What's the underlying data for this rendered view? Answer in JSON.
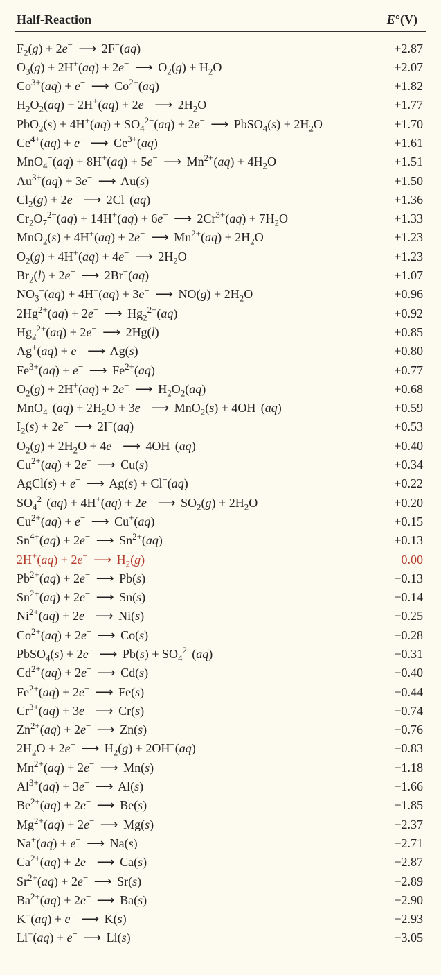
{
  "header": {
    "left": "Half-Reaction",
    "right_html": "<i>E</i>°(V)"
  },
  "rows": [
    {
      "rxn": "F<sub>2</sub>(<i>g</i>) + 2<i>e</i><sup>−</sup> <span class='arrow'>⟶</span> 2F<sup>−</sup>(<i>aq</i>)",
      "e": "+2.87"
    },
    {
      "rxn": "O<sub>3</sub>(<i>g</i>) + 2H<sup>+</sup>(<i>aq</i>) + 2<i>e</i><sup>−</sup> <span class='arrow'>⟶</span> O<sub>2</sub>(<i>g</i>) + H<sub>2</sub>O",
      "e": "+2.07"
    },
    {
      "rxn": "Co<sup>3+</sup>(<i>aq</i>) + <i>e</i><sup>−</sup> <span class='arrow'>⟶</span> Co<sup>2+</sup>(<i>aq</i>)",
      "e": "+1.82"
    },
    {
      "rxn": "H<sub>2</sub>O<sub>2</sub>(<i>aq</i>) + 2H<sup>+</sup>(<i>aq</i>) + 2<i>e</i><sup>−</sup> <span class='arrow'>⟶</span> 2H<sub>2</sub>O",
      "e": "+1.77"
    },
    {
      "rxn": "PbO<sub>2</sub>(<i>s</i>) + 4H<sup>+</sup>(<i>aq</i>) + SO<sub>4</sub><sup>2−</sup>(<i>aq</i>) + 2<i>e</i><sup>−</sup> <span class='arrow'>⟶</span> PbSO<sub>4</sub>(<i>s</i>) + 2H<sub>2</sub>O",
      "e": "+1.70"
    },
    {
      "rxn": "Ce<sup>4+</sup>(<i>aq</i>) + <i>e</i><sup>−</sup> <span class='arrow'>⟶</span> Ce<sup>3+</sup>(<i>aq</i>)",
      "e": "+1.61"
    },
    {
      "rxn": "MnO<sub>4</sub><sup>−</sup>(<i>aq</i>) + 8H<sup>+</sup>(<i>aq</i>) + 5<i>e</i><sup>−</sup> <span class='arrow'>⟶</span> Mn<sup>2+</sup>(<i>aq</i>) + 4H<sub>2</sub>O",
      "e": "+1.51"
    },
    {
      "rxn": "Au<sup>3+</sup>(<i>aq</i>) + 3<i>e</i><sup>−</sup> <span class='arrow'>⟶</span> Au(<i>s</i>)",
      "e": "+1.50"
    },
    {
      "rxn": "Cl<sub>2</sub>(<i>g</i>) + 2<i>e</i><sup>−</sup> <span class='arrow'>⟶</span> 2Cl<sup>−</sup>(<i>aq</i>)",
      "e": "+1.36"
    },
    {
      "rxn": "Cr<sub>2</sub>O<sub>7</sub><sup>2−</sup>(<i>aq</i>) + 14H<sup>+</sup>(<i>aq</i>) + 6<i>e</i><sup>−</sup> <span class='arrow'>⟶</span> 2Cr<sup>3+</sup>(<i>aq</i>) + 7H<sub>2</sub>O",
      "e": "+1.33"
    },
    {
      "rxn": "MnO<sub>2</sub>(<i>s</i>) + 4H<sup>+</sup>(<i>aq</i>) + 2<i>e</i><sup>−</sup> <span class='arrow'>⟶</span> Mn<sup>2+</sup>(<i>aq</i>) + 2H<sub>2</sub>O",
      "e": "+1.23"
    },
    {
      "rxn": "O<sub>2</sub>(<i>g</i>) + 4H<sup>+</sup>(<i>aq</i>) + 4<i>e</i><sup>−</sup> <span class='arrow'>⟶</span> 2H<sub>2</sub>O",
      "e": "+1.23"
    },
    {
      "rxn": "Br<sub>2</sub>(<i>l</i>) + 2<i>e</i><sup>−</sup> <span class='arrow'>⟶</span> 2Br<sup>−</sup>(<i>aq</i>)",
      "e": "+1.07"
    },
    {
      "rxn": "NO<sub>3</sub><sup>−</sup>(<i>aq</i>) + 4H<sup>+</sup>(<i>aq</i>) + 3<i>e</i><sup>−</sup> <span class='arrow'>⟶</span> NO(<i>g</i>) + 2H<sub>2</sub>O",
      "e": "+0.96"
    },
    {
      "rxn": "2Hg<sup>2+</sup>(<i>aq</i>) + 2<i>e</i><sup>−</sup> <span class='arrow'>⟶</span> Hg<sub>2</sub><sup>2+</sup>(<i>aq</i>)",
      "e": "+0.92"
    },
    {
      "rxn": "Hg<sub>2</sub><sup>2+</sup>(<i>aq</i>) + 2<i>e</i><sup>−</sup> <span class='arrow'>⟶</span> 2Hg(<i>l</i>)",
      "e": "+0.85"
    },
    {
      "rxn": "Ag<sup>+</sup>(<i>aq</i>) + <i>e</i><sup>−</sup> <span class='arrow'>⟶</span> Ag(<i>s</i>)",
      "e": "+0.80"
    },
    {
      "rxn": "Fe<sup>3+</sup>(<i>aq</i>) + <i>e</i><sup>−</sup> <span class='arrow'>⟶</span> Fe<sup>2+</sup>(<i>aq</i>)",
      "e": "+0.77"
    },
    {
      "rxn": "O<sub>2</sub>(<i>g</i>) + 2H<sup>+</sup>(<i>aq</i>) + 2<i>e</i><sup>−</sup> <span class='arrow'>⟶</span> H<sub>2</sub>O<sub>2</sub>(<i>aq</i>)",
      "e": "+0.68"
    },
    {
      "rxn": "MnO<sub>4</sub><sup>−</sup>(<i>aq</i>) + 2H<sub>2</sub>O + 3<i>e</i><sup>−</sup> <span class='arrow'>⟶</span> MnO<sub>2</sub>(<i>s</i>) + 4OH<sup>−</sup>(<i>aq</i>)",
      "e": "+0.59"
    },
    {
      "rxn": "I<sub>2</sub>(<i>s</i>) + 2<i>e</i><sup>−</sup> <span class='arrow'>⟶</span> 2I<sup>−</sup>(<i>aq</i>)",
      "e": "+0.53"
    },
    {
      "rxn": "O<sub>2</sub>(<i>g</i>) + 2H<sub>2</sub>O + 4<i>e</i><sup>−</sup> <span class='arrow'>⟶</span> 4OH<sup>−</sup>(<i>aq</i>)",
      "e": "+0.40"
    },
    {
      "rxn": "Cu<sup>2+</sup>(<i>aq</i>) + 2<i>e</i><sup>−</sup> <span class='arrow'>⟶</span> Cu(<i>s</i>)",
      "e": "+0.34"
    },
    {
      "rxn": "AgCl(<i>s</i>) + <i>e</i><sup>−</sup> <span class='arrow'>⟶</span> Ag(<i>s</i>) + Cl<sup>−</sup>(<i>aq</i>)",
      "e": "+0.22"
    },
    {
      "rxn": "SO<sub>4</sub><sup>2−</sup>(<i>aq</i>) + 4H<sup>+</sup>(<i>aq</i>) + 2<i>e</i><sup>−</sup> <span class='arrow'>⟶</span> SO<sub>2</sub>(<i>g</i>) + 2H<sub>2</sub>O",
      "e": "+0.20"
    },
    {
      "rxn": "Cu<sup>2+</sup>(<i>aq</i>) + <i>e</i><sup>−</sup> <span class='arrow'>⟶</span> Cu<sup>+</sup>(<i>aq</i>)",
      "e": "+0.15"
    },
    {
      "rxn": "Sn<sup>4+</sup>(<i>aq</i>) + 2<i>e</i><sup>−</sup> <span class='arrow'>⟶</span> Sn<sup>2+</sup>(<i>aq</i>)",
      "e": "+0.13"
    },
    {
      "rxn": "2H<sup>+</sup>(<i>aq</i>) + 2<i>e</i><sup>−</sup> <span class='arrow'>⟶</span> H<sub>2</sub>(<i>g</i>)",
      "e": "0.00",
      "hl": true
    },
    {
      "rxn": "Pb<sup>2+</sup>(<i>aq</i>) + 2<i>e</i><sup>−</sup> <span class='arrow'>⟶</span> Pb(<i>s</i>)",
      "e": "−0.13"
    },
    {
      "rxn": "Sn<sup>2+</sup>(<i>aq</i>) + 2<i>e</i><sup>−</sup> <span class='arrow'>⟶</span> Sn(<i>s</i>)",
      "e": "−0.14"
    },
    {
      "rxn": "Ni<sup>2+</sup>(<i>aq</i>) + 2<i>e</i><sup>−</sup> <span class='arrow'>⟶</span> Ni(<i>s</i>)",
      "e": "−0.25"
    },
    {
      "rxn": "Co<sup>2+</sup>(<i>aq</i>) + 2<i>e</i><sup>−</sup> <span class='arrow'>⟶</span> Co(<i>s</i>)",
      "e": "−0.28"
    },
    {
      "rxn": "PbSO<sub>4</sub>(<i>s</i>) + 2<i>e</i><sup>−</sup> <span class='arrow'>⟶</span> Pb(<i>s</i>) + SO<sub>4</sub><sup>2−</sup>(<i>aq</i>)",
      "e": "−0.31"
    },
    {
      "rxn": "Cd<sup>2+</sup>(<i>aq</i>) + 2<i>e</i><sup>−</sup> <span class='arrow'>⟶</span> Cd(<i>s</i>)",
      "e": "−0.40"
    },
    {
      "rxn": "Fe<sup>2+</sup>(<i>aq</i>) + 2<i>e</i><sup>−</sup> <span class='arrow'>⟶</span> Fe(<i>s</i>)",
      "e": "−0.44"
    },
    {
      "rxn": "Cr<sup>3+</sup>(<i>aq</i>) + 3<i>e</i><sup>−</sup> <span class='arrow'>⟶</span> Cr(<i>s</i>)",
      "e": "−0.74"
    },
    {
      "rxn": "Zn<sup>2+</sup>(<i>aq</i>) + 2<i>e</i><sup>−</sup> <span class='arrow'>⟶</span> Zn(<i>s</i>)",
      "e": "−0.76"
    },
    {
      "rxn": "2H<sub>2</sub>O + 2<i>e</i><sup>−</sup> <span class='arrow'>⟶</span> H<sub>2</sub>(<i>g</i>) + 2OH<sup>−</sup>(<i>aq</i>)",
      "e": "−0.83"
    },
    {
      "rxn": "Mn<sup>2+</sup>(<i>aq</i>) + 2<i>e</i><sup>−</sup> <span class='arrow'>⟶</span> Mn(<i>s</i>)",
      "e": "−1.18"
    },
    {
      "rxn": "Al<sup>3+</sup>(<i>aq</i>) + 3<i>e</i><sup>−</sup> <span class='arrow'>⟶</span> Al(<i>s</i>)",
      "e": "−1.66"
    },
    {
      "rxn": "Be<sup>2+</sup>(<i>aq</i>) + 2<i>e</i><sup>−</sup> <span class='arrow'>⟶</span> Be(<i>s</i>)",
      "e": "−1.85"
    },
    {
      "rxn": "Mg<sup>2+</sup>(<i>aq</i>) + 2<i>e</i><sup>−</sup> <span class='arrow'>⟶</span> Mg(<i>s</i>)",
      "e": "−2.37"
    },
    {
      "rxn": "Na<sup>+</sup>(<i>aq</i>) + <i>e</i><sup>−</sup> <span class='arrow'>⟶</span> Na(<i>s</i>)",
      "e": "−2.71"
    },
    {
      "rxn": "Ca<sup>2+</sup>(<i>aq</i>) + 2<i>e</i><sup>−</sup> <span class='arrow'>⟶</span> Ca(<i>s</i>)",
      "e": "−2.87"
    },
    {
      "rxn": "Sr<sup>2+</sup>(<i>aq</i>) + 2<i>e</i><sup>−</sup> <span class='arrow'>⟶</span> Sr(<i>s</i>)",
      "e": "−2.89"
    },
    {
      "rxn": "Ba<sup>2+</sup>(<i>aq</i>) + 2<i>e</i><sup>−</sup> <span class='arrow'>⟶</span> Ba(<i>s</i>)",
      "e": "−2.90"
    },
    {
      "rxn": "K<sup>+</sup>(<i>aq</i>) + <i>e</i><sup>−</sup> <span class='arrow'>⟶</span> K(<i>s</i>)",
      "e": "−2.93"
    },
    {
      "rxn": "Li<sup>+</sup>(<i>aq</i>) + <i>e</i><sup>−</sup> <span class='arrow'>⟶</span> Li(<i>s</i>)",
      "e": "−3.05"
    }
  ]
}
